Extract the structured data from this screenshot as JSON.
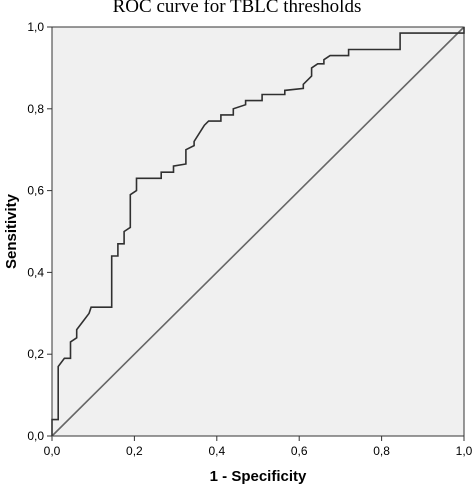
{
  "chart_data": {
    "type": "line",
    "title": "ROC curve for TBLC thresholds",
    "xlabel": "1 - Specificity",
    "ylabel": "Sensitivity",
    "xlim": [
      0,
      1
    ],
    "ylim": [
      0,
      1
    ],
    "x_ticks": [
      "0,0",
      "0,2",
      "0,4",
      "0,6",
      "0,8",
      "1,0"
    ],
    "y_ticks": [
      "0,0",
      "0,2",
      "0,4",
      "0,6",
      "0,8",
      "1,0"
    ],
    "grid": false,
    "series": [
      {
        "values": [
          [
            0.0,
            0.0
          ],
          [
            0.0,
            0.04
          ],
          [
            0.015,
            0.04
          ],
          [
            0.015,
            0.17
          ],
          [
            0.03,
            0.19
          ],
          [
            0.045,
            0.19
          ],
          [
            0.045,
            0.23
          ],
          [
            0.06,
            0.24
          ],
          [
            0.06,
            0.26
          ],
          [
            0.075,
            0.28
          ],
          [
            0.09,
            0.3
          ],
          [
            0.095,
            0.315
          ],
          [
            0.145,
            0.315
          ],
          [
            0.145,
            0.44
          ],
          [
            0.16,
            0.44
          ],
          [
            0.16,
            0.47
          ],
          [
            0.175,
            0.47
          ],
          [
            0.175,
            0.5
          ],
          [
            0.19,
            0.51
          ],
          [
            0.19,
            0.59
          ],
          [
            0.205,
            0.6
          ],
          [
            0.205,
            0.63
          ],
          [
            0.265,
            0.63
          ],
          [
            0.265,
            0.645
          ],
          [
            0.295,
            0.645
          ],
          [
            0.295,
            0.66
          ],
          [
            0.325,
            0.665
          ],
          [
            0.325,
            0.7
          ],
          [
            0.345,
            0.71
          ],
          [
            0.345,
            0.72
          ],
          [
            0.37,
            0.76
          ],
          [
            0.38,
            0.77
          ],
          [
            0.41,
            0.77
          ],
          [
            0.41,
            0.785
          ],
          [
            0.44,
            0.785
          ],
          [
            0.44,
            0.8
          ],
          [
            0.47,
            0.81
          ],
          [
            0.47,
            0.82
          ],
          [
            0.51,
            0.82
          ],
          [
            0.51,
            0.835
          ],
          [
            0.565,
            0.835
          ],
          [
            0.565,
            0.845
          ],
          [
            0.61,
            0.85
          ],
          [
            0.61,
            0.86
          ],
          [
            0.63,
            0.88
          ],
          [
            0.63,
            0.9
          ],
          [
            0.645,
            0.91
          ],
          [
            0.66,
            0.91
          ],
          [
            0.66,
            0.92
          ],
          [
            0.675,
            0.93
          ],
          [
            0.72,
            0.93
          ],
          [
            0.72,
            0.945
          ],
          [
            0.845,
            0.945
          ],
          [
            0.845,
            0.985
          ],
          [
            1.0,
            0.985
          ],
          [
            1.0,
            1.0
          ]
        ],
        "color": "#303030"
      },
      {
        "values": [
          [
            0,
            0
          ],
          [
            1,
            1
          ]
        ],
        "color": "#666666"
      }
    ]
  }
}
